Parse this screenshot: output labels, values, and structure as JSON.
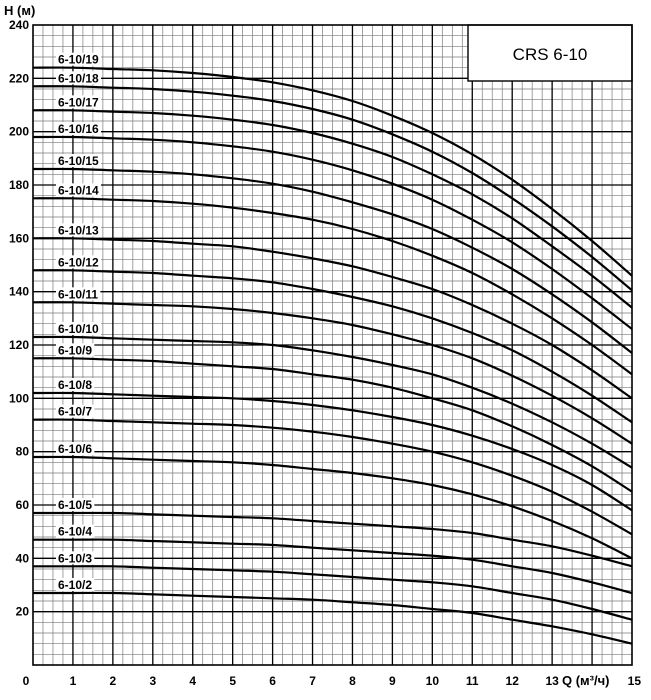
{
  "chart_data": {
    "type": "line",
    "model": "CRS 6-10",
    "ylabel": "H (м)",
    "xlabel": "Q (м³/ч)",
    "xlim": [
      0,
      15
    ],
    "ylim": [
      0,
      240
    ],
    "x_ticks": [
      "0",
      "1",
      "2",
      "3",
      "4",
      "5",
      "6",
      "7",
      "8",
      "9",
      "10",
      "11",
      "12",
      "13",
      "15"
    ],
    "y_ticks": [
      "20",
      "40",
      "60",
      "80",
      "100",
      "120",
      "140",
      "160",
      "180",
      "200",
      "220",
      "240"
    ],
    "grid": true,
    "x": [
      0,
      1,
      2,
      3,
      4,
      5,
      6,
      7,
      8,
      9,
      10,
      11,
      12,
      13,
      14,
      15
    ],
    "series": [
      {
        "name": "6-10/2",
        "values": [
          27,
          27,
          27,
          26.5,
          26,
          25.5,
          25,
          24.5,
          23.5,
          22.5,
          21,
          19.5,
          17,
          14.5,
          11.5,
          8
        ]
      },
      {
        "name": "6-10/3",
        "values": [
          37,
          37,
          37,
          36.5,
          36,
          35.5,
          35,
          34,
          33,
          32,
          31,
          29.5,
          27,
          24.5,
          21,
          17
        ]
      },
      {
        "name": "6-10/4",
        "values": [
          47,
          47,
          47,
          46.5,
          46,
          45.5,
          45,
          44,
          43,
          42,
          41,
          39.5,
          37,
          34.5,
          31,
          27
        ]
      },
      {
        "name": "6-10/5",
        "values": [
          57,
          57,
          57,
          56.5,
          56,
          55.5,
          55,
          54,
          53,
          52,
          51,
          49.5,
          47,
          44.5,
          41,
          37
        ]
      },
      {
        "name": "6-10/6",
        "values": [
          78,
          78,
          77.5,
          77,
          76.5,
          76,
          75,
          73.5,
          72,
          70,
          67.5,
          64,
          59.5,
          54,
          47.5,
          40
        ]
      },
      {
        "name": "6-10/7",
        "values": [
          92,
          92,
          91.5,
          91,
          90.5,
          90,
          89,
          87.5,
          85.5,
          83,
          80,
          76,
          71,
          65,
          57.5,
          49
        ]
      },
      {
        "name": "6-10/8",
        "values": [
          102,
          102,
          101.5,
          101,
          100.5,
          100,
          99,
          97.5,
          95.5,
          93,
          90,
          86,
          81,
          75,
          67.5,
          58
        ]
      },
      {
        "name": "6-10/9",
        "values": [
          115,
          115,
          114.5,
          114,
          113,
          112,
          111,
          109,
          107,
          104,
          100,
          95.5,
          89.5,
          82.5,
          74.5,
          65
        ]
      },
      {
        "name": "6-10/10",
        "values": [
          123,
          123,
          122.5,
          122,
          121.5,
          121,
          120,
          118,
          115.5,
          112.5,
          109,
          104,
          98,
          91,
          83,
          74
        ]
      },
      {
        "name": "6-10/11",
        "values": [
          136,
          136,
          135.5,
          135,
          134.5,
          133.5,
          132,
          130,
          127.5,
          124,
          120,
          115,
          108.5,
          101,
          92.5,
          83
        ]
      },
      {
        "name": "6-10/12",
        "values": [
          148,
          148,
          147.5,
          147,
          146,
          145,
          143.5,
          141,
          138,
          134.5,
          130,
          124.5,
          118,
          110,
          101,
          91
        ]
      },
      {
        "name": "6-10/13",
        "values": [
          160,
          160,
          159.5,
          159,
          158,
          157,
          155,
          152.5,
          149.5,
          145.5,
          141,
          135,
          128,
          120,
          110.5,
          100
        ]
      },
      {
        "name": "6-10/14",
        "values": [
          175,
          175,
          174.5,
          174,
          173,
          171.5,
          169.5,
          167,
          163.5,
          159,
          153.5,
          147,
          139,
          130,
          120,
          109
        ]
      },
      {
        "name": "6-10/15",
        "values": [
          186,
          186,
          185.5,
          185,
          184,
          182.5,
          180.5,
          177.5,
          173.5,
          169,
          163.5,
          156.5,
          148.5,
          139,
          128.5,
          117
        ]
      },
      {
        "name": "6-10/16",
        "values": [
          198,
          198,
          197.5,
          197,
          196,
          194.5,
          192.5,
          189.5,
          185.5,
          180.5,
          174.5,
          167,
          158.5,
          148.5,
          137.5,
          126
        ]
      },
      {
        "name": "6-10/17",
        "values": [
          208,
          208,
          207.5,
          207,
          206,
          204.5,
          202.5,
          199.5,
          195.5,
          190.5,
          184,
          176.5,
          167.5,
          157,
          146,
          134
        ]
      },
      {
        "name": "6-10/18",
        "values": [
          217,
          217,
          216.5,
          216,
          215,
          213.5,
          211.5,
          208.5,
          204.5,
          199,
          192.5,
          184.5,
          175,
          164.5,
          153,
          140.5
        ]
      },
      {
        "name": "6-10/19",
        "values": [
          224,
          224,
          223.5,
          223,
          222,
          220.5,
          218.5,
          215.5,
          211.5,
          206,
          199.5,
          191.5,
          182,
          171,
          159,
          146
        ]
      }
    ]
  }
}
